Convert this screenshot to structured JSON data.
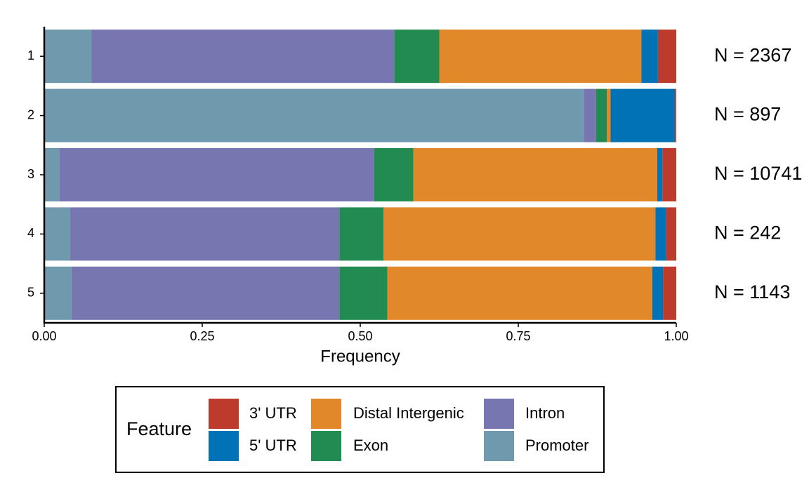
{
  "chart_data": {
    "type": "stacked-bar-horizontal",
    "xlabel": "Frequency",
    "categories": [
      "1",
      "2",
      "3",
      "4",
      "5"
    ],
    "series": [
      {
        "name": "Promoter",
        "color": "#6f99ad",
        "values": [
          0.075,
          0.854,
          0.024,
          0.041,
          0.043
        ]
      },
      {
        "name": "Intron",
        "color": "#7876b1",
        "values": [
          0.479,
          0.019,
          0.498,
          0.426,
          0.424
        ]
      },
      {
        "name": "Exon",
        "color": "#228b52",
        "values": [
          0.071,
          0.017,
          0.062,
          0.07,
          0.076
        ]
      },
      {
        "name": "Distal Intergenic",
        "color": "#e0882a",
        "values": [
          0.32,
          0.006,
          0.386,
          0.43,
          0.419
        ]
      },
      {
        "name": "5' UTR",
        "color": "#0072b5",
        "values": [
          0.026,
          0.102,
          0.008,
          0.017,
          0.017
        ]
      },
      {
        "name": "3' UTR",
        "color": "#bd3b2c",
        "values": [
          0.029,
          0.002,
          0.022,
          0.016,
          0.021
        ]
      }
    ],
    "annotations": [
      "N = 2367",
      "N = 897",
      "N = 10741",
      "N = 242",
      "N = 1143"
    ],
    "xlim": [
      0,
      1
    ],
    "xticks": [
      {
        "value": 0,
        "label": "0.00"
      },
      {
        "value": 0.25,
        "label": "0.25"
      },
      {
        "value": 0.5,
        "label": "0.50"
      },
      {
        "value": 0.75,
        "label": "0.75"
      },
      {
        "value": 1,
        "label": "1.00"
      }
    ],
    "legend_title": "Feature",
    "legend_position": "bottom"
  }
}
